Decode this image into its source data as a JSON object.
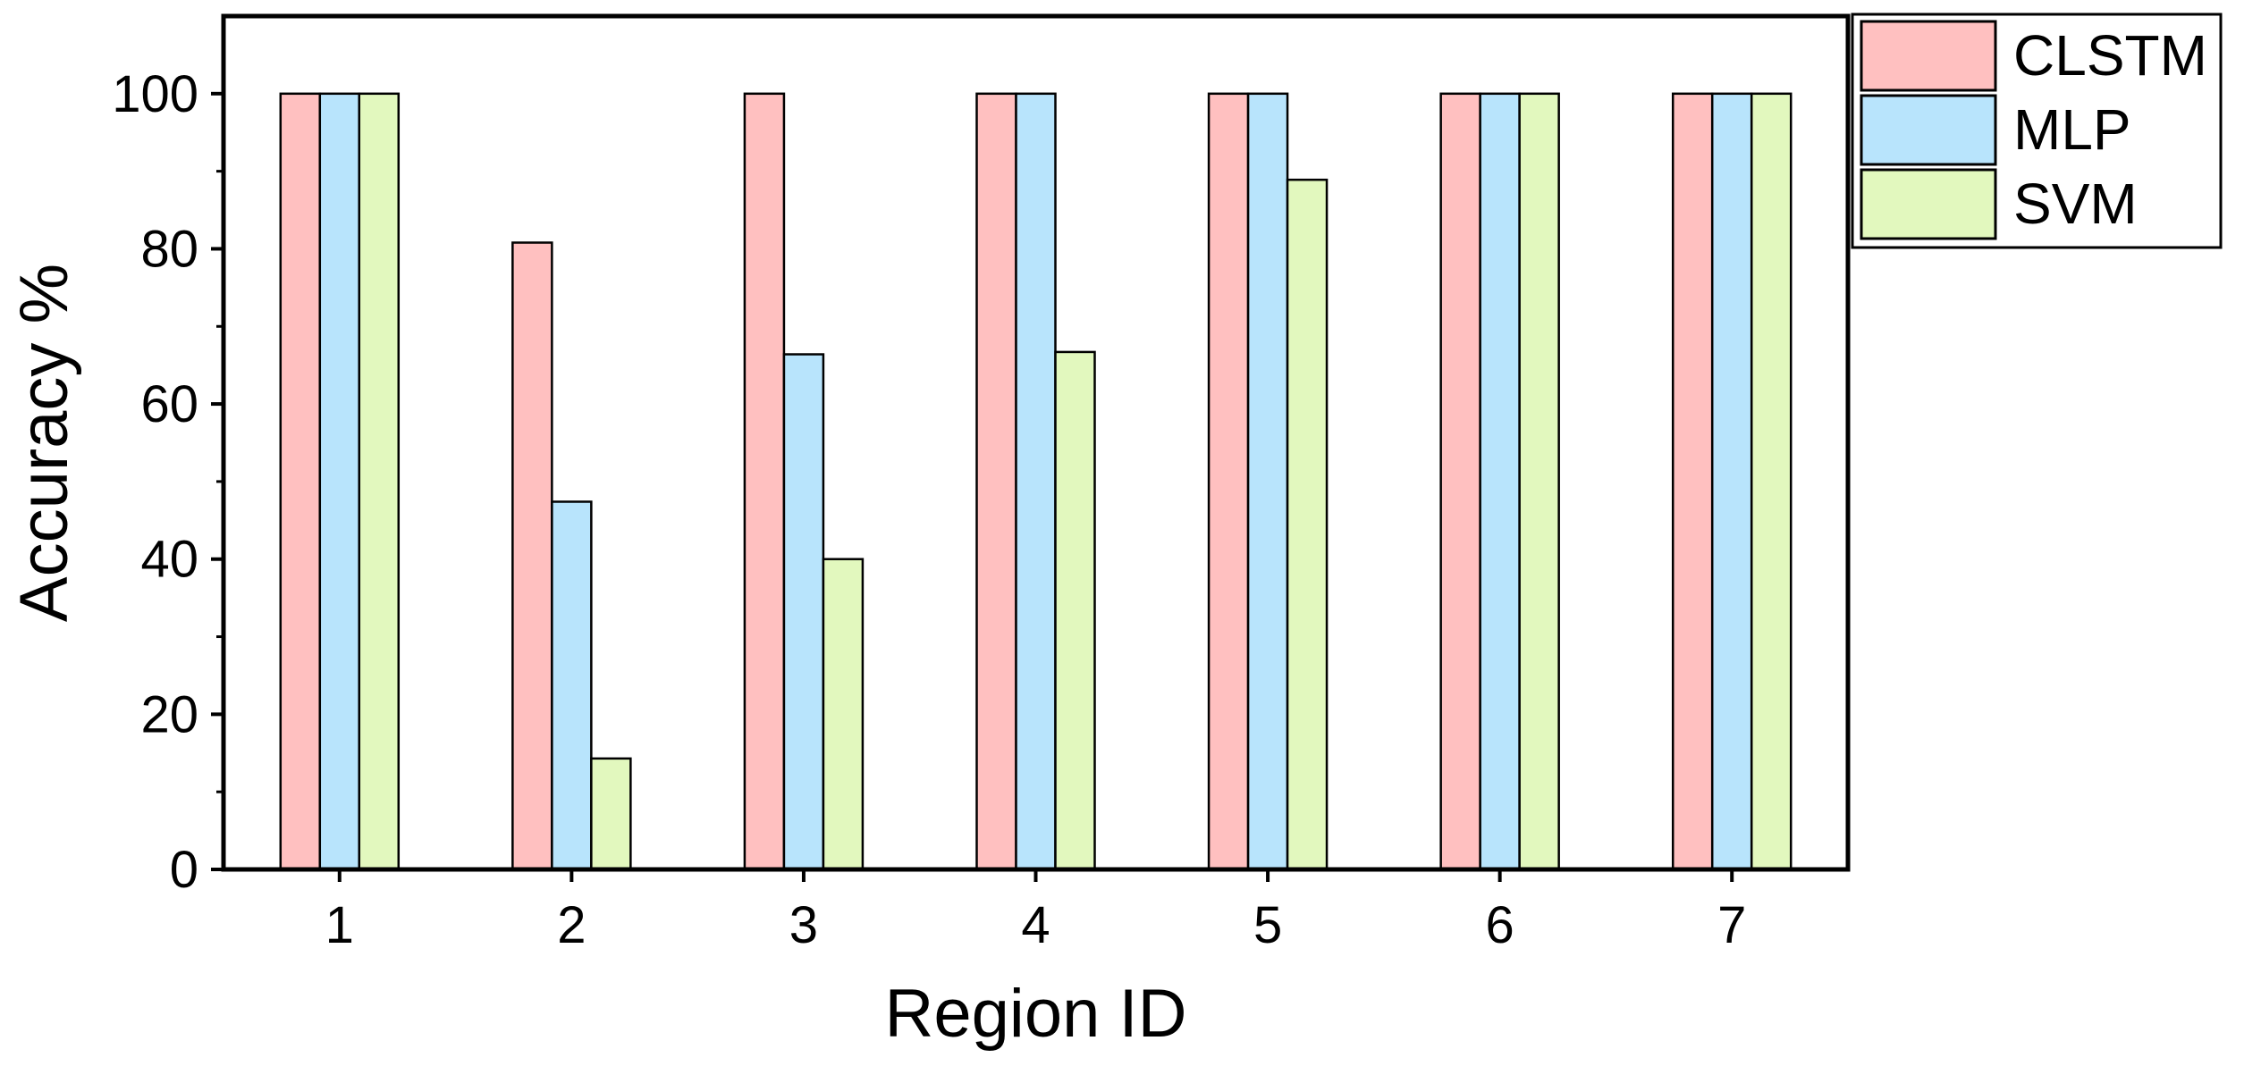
{
  "chart_data": {
    "type": "bar",
    "title": "",
    "xlabel": "Region ID",
    "ylabel": "Accuracy %",
    "categories": [
      "1",
      "2",
      "3",
      "4",
      "5",
      "6",
      "7"
    ],
    "ylim": [
      0,
      110
    ],
    "yticks": [
      "0",
      "20",
      "40",
      "60",
      "80",
      "100"
    ],
    "grid": false,
    "legend_position": "top-right, outside plot",
    "series": [
      {
        "name": "CLSTM",
        "color": "#ffc0c0",
        "values": [
          100,
          80.8,
          100,
          100,
          100,
          100,
          100
        ]
      },
      {
        "name": "MLP",
        "color": "#b8e4fc",
        "values": [
          100,
          47.4,
          66.4,
          100,
          100,
          100,
          100
        ]
      },
      {
        "name": "SVM",
        "color": "#e2f8be",
        "values": [
          100,
          14.3,
          40,
          66.7,
          88.9,
          100,
          100
        ]
      }
    ]
  }
}
